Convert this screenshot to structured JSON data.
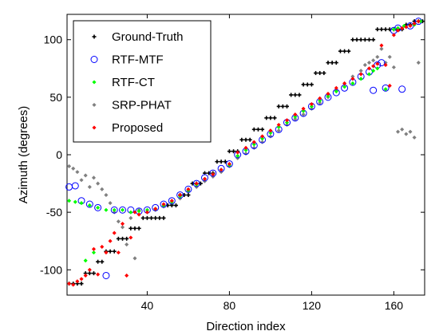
{
  "chart_data": {
    "type": "scatter",
    "title": "",
    "xlabel": "Direction index",
    "ylabel": "Azimuth (degrees)",
    "xlim": [
      1,
      175
    ],
    "ylim": [
      -122,
      122
    ],
    "xticks": [
      40,
      80,
      120,
      160
    ],
    "yticks": [
      -100,
      -50,
      0,
      50,
      100
    ],
    "grid": false,
    "legend_position": "top-left",
    "series": [
      {
        "name": "Ground-Truth",
        "color": "#000000",
        "marker": "plus",
        "x": [
          2,
          4,
          6,
          8,
          10,
          12,
          14,
          16,
          18,
          20,
          22,
          24,
          26,
          28,
          30,
          32,
          34,
          36,
          38,
          40,
          42,
          44,
          46,
          48,
          50,
          52,
          54,
          56,
          58,
          60,
          62,
          64,
          66,
          68,
          70,
          72,
          74,
          76,
          78,
          80,
          82,
          84,
          86,
          88,
          90,
          92,
          94,
          96,
          98,
          100,
          102,
          104,
          106,
          108,
          110,
          112,
          114,
          116,
          118,
          120,
          122,
          124,
          126,
          128,
          130,
          132,
          134,
          136,
          138,
          140,
          142,
          144,
          146,
          148,
          150,
          152,
          154,
          156,
          158,
          160,
          162,
          164,
          166,
          168,
          170,
          172,
          174
        ],
        "y": [
          -112,
          -112,
          -112,
          -112,
          -103,
          -103,
          -103,
          -93,
          -93,
          -84,
          -84,
          -84,
          -73,
          -73,
          -73,
          -64,
          -64,
          -64,
          -55,
          -55,
          -55,
          -55,
          -55,
          -55,
          -44,
          -44,
          -44,
          -35,
          -35,
          -35,
          -25,
          -25,
          -25,
          -16,
          -16,
          -16,
          -6,
          -6,
          -6,
          3,
          3,
          3,
          13,
          13,
          13,
          22,
          22,
          22,
          32,
          32,
          32,
          42,
          42,
          42,
          52,
          52,
          52,
          61,
          61,
          61,
          71,
          71,
          71,
          80,
          80,
          80,
          90,
          90,
          90,
          100,
          100,
          100,
          100,
          100,
          100,
          109,
          109,
          109,
          109,
          109,
          109,
          109,
          113,
          113,
          116,
          116,
          116
        ]
      },
      {
        "name": "RTF-MTF",
        "color": "#0000ff",
        "marker": "circle",
        "x": [
          2,
          5,
          8,
          12,
          16,
          20,
          24,
          28,
          32,
          36,
          40,
          44,
          48,
          52,
          56,
          60,
          64,
          68,
          72,
          76,
          80,
          84,
          88,
          92,
          96,
          100,
          104,
          108,
          112,
          116,
          120,
          124,
          128,
          132,
          136,
          140,
          144,
          148,
          150,
          152,
          154,
          156,
          160,
          162,
          164,
          168,
          172
        ],
        "y": [
          -28,
          -27,
          -40,
          -43,
          -46,
          -105,
          -48,
          -48,
          -48,
          -49,
          -48,
          -46,
          -43,
          -40,
          -35,
          -30,
          -25,
          -20,
          -16,
          -12,
          -8,
          0,
          3,
          8,
          13,
          18,
          22,
          28,
          32,
          36,
          42,
          46,
          50,
          54,
          58,
          63,
          68,
          72,
          56,
          78,
          80,
          58,
          108,
          110,
          57,
          112,
          116
        ]
      },
      {
        "name": "RTF-CT",
        "color": "#00ff00",
        "marker": "dot",
        "x": [
          2,
          5,
          8,
          10,
          12,
          14,
          16,
          20,
          24,
          28,
          32,
          36,
          40,
          44,
          48,
          52,
          56,
          60,
          64,
          68,
          72,
          76,
          80,
          84,
          88,
          92,
          96,
          100,
          104,
          108,
          112,
          116,
          120,
          124,
          128,
          132,
          136,
          140,
          144,
          148,
          150,
          152,
          156,
          160,
          162,
          165,
          170,
          173
        ],
        "y": [
          -40,
          -41,
          -42,
          -92,
          -44,
          -85,
          -46,
          -48,
          -48,
          -48,
          -50,
          -49,
          -48,
          -47,
          -44,
          -41,
          -36,
          -31,
          -26,
          -21,
          -17,
          -13,
          -9,
          -1,
          4,
          9,
          14,
          19,
          24,
          28,
          33,
          38,
          42,
          47,
          51,
          55,
          59,
          62,
          66,
          70,
          73,
          75,
          57,
          109,
          110,
          112,
          113,
          116
        ]
      },
      {
        "name": "SRP-PHAT",
        "color": "#808080",
        "marker": "dot",
        "x": [
          2,
          4,
          6,
          8,
          10,
          12,
          14,
          16,
          18,
          20,
          22,
          24,
          26,
          28,
          30,
          32,
          34,
          36,
          40,
          44,
          48,
          52,
          56,
          60,
          64,
          68,
          72,
          76,
          80,
          84,
          88,
          92,
          96,
          100,
          104,
          108,
          112,
          116,
          120,
          124,
          128,
          132,
          136,
          140,
          144,
          146,
          148,
          150,
          152,
          154,
          156,
          158,
          160,
          162,
          164,
          166,
          168,
          170,
          172
        ],
        "y": [
          -10,
          -12,
          -15,
          -22,
          -18,
          -28,
          -20,
          -25,
          -30,
          -35,
          -42,
          -50,
          -58,
          -63,
          -78,
          -55,
          -90,
          -48,
          -50,
          -48,
          -45,
          -43,
          -38,
          -32,
          -28,
          -23,
          -19,
          -15,
          -10,
          -3,
          1,
          6,
          11,
          16,
          21,
          26,
          31,
          35,
          40,
          45,
          50,
          56,
          62,
          68,
          73,
          78,
          80,
          82,
          85,
          92,
          80,
          85,
          76,
          20,
          22,
          18,
          20,
          15,
          80
        ]
      },
      {
        "name": "Proposed",
        "color": "#ff0000",
        "marker": "dot",
        "x": [
          2,
          4,
          6,
          8,
          10,
          12,
          14,
          16,
          18,
          20,
          22,
          24,
          26,
          28,
          30,
          32,
          34,
          36,
          40,
          44,
          48,
          52,
          56,
          60,
          64,
          68,
          72,
          76,
          80,
          84,
          88,
          92,
          96,
          100,
          104,
          108,
          112,
          116,
          120,
          124,
          128,
          132,
          136,
          140,
          144,
          148,
          150,
          152,
          154,
          156,
          158,
          160,
          162,
          164,
          166,
          168,
          170,
          172
        ],
        "y": [
          -112,
          -113,
          -110,
          -108,
          -105,
          -100,
          -82,
          -104,
          -80,
          -85,
          -75,
          -68,
          -85,
          -60,
          -105,
          -72,
          -50,
          -52,
          -50,
          -47,
          -43,
          -40,
          -35,
          -30,
          -25,
          -21,
          -17,
          -13,
          -8,
          2,
          6,
          11,
          16,
          21,
          26,
          30,
          35,
          40,
          44,
          49,
          53,
          58,
          62,
          66,
          70,
          75,
          77,
          79,
          95,
          78,
          60,
          104,
          108,
          110,
          111,
          112,
          114,
          116
        ]
      }
    ]
  }
}
